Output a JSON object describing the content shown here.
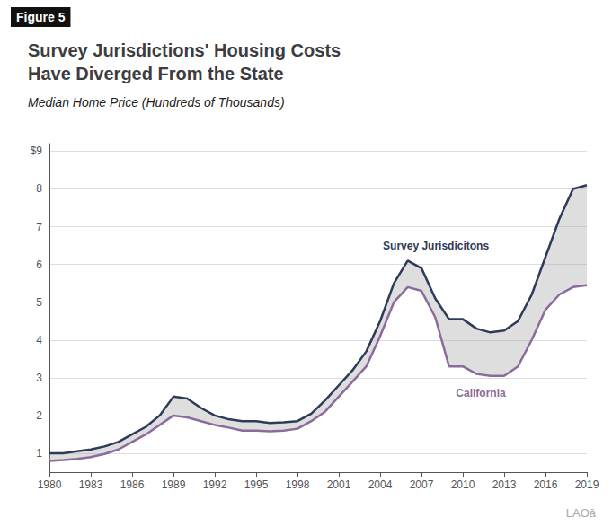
{
  "chart_data": {
    "type": "line",
    "title": "Survey Jurisdictions' Housing Costs\nHave Diverged From the State",
    "subtitle": "Median Home Price (Hundreds of Thousands)",
    "x": [
      1980,
      1981,
      1982,
      1983,
      1984,
      1985,
      1986,
      1987,
      1988,
      1989,
      1990,
      1991,
      1992,
      1993,
      1994,
      1995,
      1996,
      1997,
      1998,
      1999,
      2000,
      2001,
      2002,
      2003,
      2004,
      2005,
      2006,
      2007,
      2008,
      2009,
      2010,
      2011,
      2012,
      2013,
      2014,
      2015,
      2016,
      2017,
      2018,
      2019
    ],
    "series": [
      {
        "name": "Survey Jurisdicitons",
        "color": "#2e3a59",
        "values": [
          1.0,
          1.0,
          1.05,
          1.1,
          1.18,
          1.3,
          1.5,
          1.7,
          2.0,
          2.5,
          2.45,
          2.2,
          2.0,
          1.9,
          1.85,
          1.85,
          1.8,
          1.82,
          1.85,
          2.05,
          2.4,
          2.8,
          3.2,
          3.7,
          4.5,
          5.5,
          6.1,
          5.9,
          5.1,
          4.55,
          4.55,
          4.3,
          4.2,
          4.25,
          4.5,
          5.2,
          6.2,
          7.2,
          8.0,
          8.1
        ]
      },
      {
        "name": "California",
        "color": "#8b6b9b",
        "values": [
          0.8,
          0.82,
          0.85,
          0.9,
          0.98,
          1.1,
          1.3,
          1.5,
          1.75,
          2.0,
          1.95,
          1.85,
          1.75,
          1.68,
          1.6,
          1.6,
          1.58,
          1.6,
          1.65,
          1.85,
          2.1,
          2.5,
          2.9,
          3.3,
          4.1,
          5.0,
          5.4,
          5.3,
          4.6,
          3.3,
          3.3,
          3.1,
          3.05,
          3.05,
          3.3,
          4.0,
          4.8,
          5.2,
          5.4,
          5.45
        ]
      }
    ],
    "xlim": [
      1980,
      2019
    ],
    "xticks": [
      1980,
      1983,
      1986,
      1989,
      1992,
      1995,
      1998,
      2001,
      2004,
      2007,
      2010,
      2013,
      2016,
      2019
    ],
    "ylim": [
      0.5,
      9.2
    ],
    "yticks": [
      1,
      2,
      3,
      4,
      5,
      6,
      7,
      8,
      {
        "value": 9,
        "label": "$9"
      }
    ],
    "grid": true,
    "annotations": [
      {
        "text": "Figure 5"
      },
      {
        "text": "Survey Jurisdicitons",
        "x": 2004.2,
        "y": 6.5
      },
      {
        "text": "California",
        "x": 2009.5,
        "y": 2.6
      },
      {
        "text": "LAOâ"
      }
    ]
  }
}
